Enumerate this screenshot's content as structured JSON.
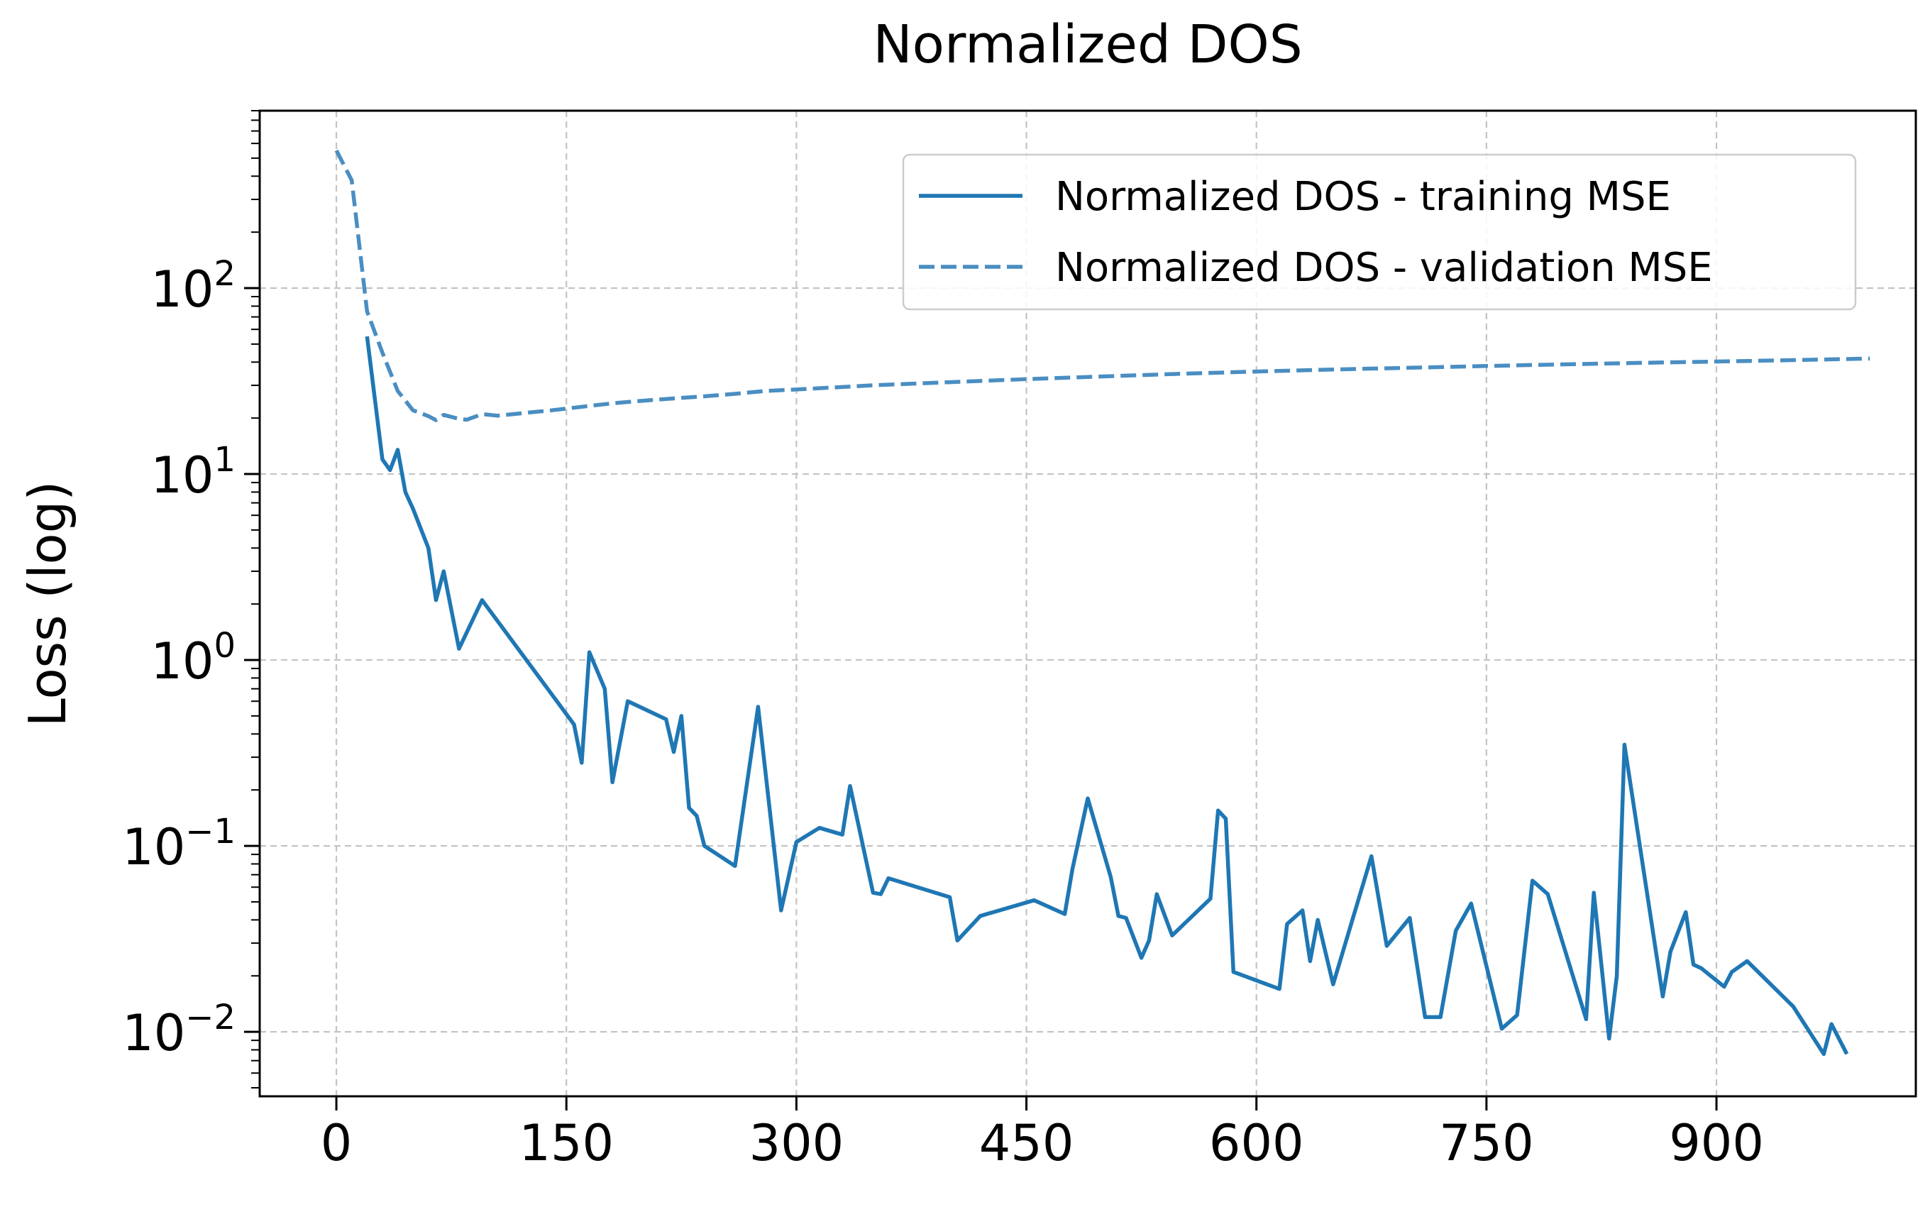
{
  "chart_data": {
    "type": "line",
    "title": "Normalized DOS",
    "xlabel": "",
    "ylabel": "Loss (log)",
    "yscale": "log",
    "xlim": [
      -50,
      1030
    ],
    "ylim": [
      0.0045,
      900
    ],
    "grid": true,
    "legend_position": "top-right",
    "x_ticks": [
      0,
      150,
      300,
      450,
      600,
      750,
      900
    ],
    "x_tick_labels": [
      "0",
      "150",
      "300",
      "450",
      "600",
      "750",
      "900"
    ],
    "y_ticks": [
      {
        "value": 100,
        "base": "10",
        "exp": "2"
      },
      {
        "value": 10,
        "base": "10",
        "exp": "1"
      },
      {
        "value": 1,
        "base": "10",
        "exp": "0"
      },
      {
        "value": 0.1,
        "base": "10",
        "exp": "−1"
      },
      {
        "value": 0.01,
        "base": "10",
        "exp": "−2"
      }
    ],
    "series": [
      {
        "name": "Normalized DOS - training MSE",
        "color": "#1f77b4",
        "style": "solid",
        "x": [
          20,
          30,
          35,
          40,
          45,
          50,
          60,
          65,
          70,
          80,
          95,
          155,
          160,
          165,
          175,
          180,
          190,
          215,
          220,
          225,
          230,
          235,
          240,
          260,
          275,
          290,
          300,
          315,
          330,
          335,
          350,
          355,
          360,
          400,
          405,
          420,
          455,
          475,
          480,
          490,
          505,
          510,
          515,
          525,
          530,
          535,
          545,
          570,
          575,
          580,
          585,
          615,
          620,
          630,
          635,
          640,
          650,
          675,
          685,
          700,
          710,
          720,
          730,
          740,
          760,
          770,
          780,
          790,
          815,
          820,
          830,
          835,
          840,
          865,
          870,
          880,
          885,
          890,
          905,
          910,
          920,
          950,
          970,
          975,
          985
        ],
        "values": [
          55,
          12,
          10.5,
          13.5,
          8,
          6.5,
          4,
          2.1,
          3,
          1.15,
          2.1,
          0.45,
          0.28,
          1.1,
          0.7,
          0.22,
          0.6,
          0.48,
          0.32,
          0.5,
          0.16,
          0.145,
          0.1,
          0.078,
          0.56,
          0.045,
          0.105,
          0.125,
          0.115,
          0.21,
          0.056,
          0.055,
          0.067,
          0.053,
          0.031,
          0.042,
          0.051,
          0.043,
          0.075,
          0.18,
          0.068,
          0.042,
          0.041,
          0.025,
          0.031,
          0.055,
          0.033,
          0.052,
          0.155,
          0.14,
          0.021,
          0.017,
          0.038,
          0.045,
          0.024,
          0.04,
          0.018,
          0.088,
          0.029,
          0.041,
          0.012,
          0.012,
          0.035,
          0.049,
          0.0104,
          0.0123,
          0.065,
          0.055,
          0.0117,
          0.056,
          0.0092,
          0.02,
          0.35,
          0.0155,
          0.027,
          0.044,
          0.023,
          0.022,
          0.0175,
          0.021,
          0.024,
          0.0137,
          0.0076,
          0.011,
          0.0076
        ]
      },
      {
        "name": "Normalized DOS - validation MSE",
        "color": "#4a8ec2",
        "style": "dashed",
        "x": [
          0,
          10,
          20,
          30,
          40,
          50,
          60,
          65,
          70,
          80,
          85,
          95,
          105,
          120,
          140,
          160,
          180,
          200,
          220,
          240,
          260,
          280,
          300,
          350,
          400,
          450,
          500,
          550,
          600,
          650,
          700,
          750,
          800,
          850,
          900,
          950,
          1000
        ],
        "values": [
          550,
          380,
          75,
          45,
          28,
          22,
          20.5,
          19.5,
          20.8,
          19.8,
          19.6,
          21,
          20.6,
          21.2,
          22,
          23,
          24,
          24.8,
          25.5,
          26.2,
          27,
          28,
          28.5,
          30,
          31.2,
          32.4,
          33.5,
          34.6,
          35.6,
          36.5,
          37.3,
          38.1,
          38.9,
          39.6,
          40.3,
          41,
          41.8
        ]
      }
    ]
  }
}
